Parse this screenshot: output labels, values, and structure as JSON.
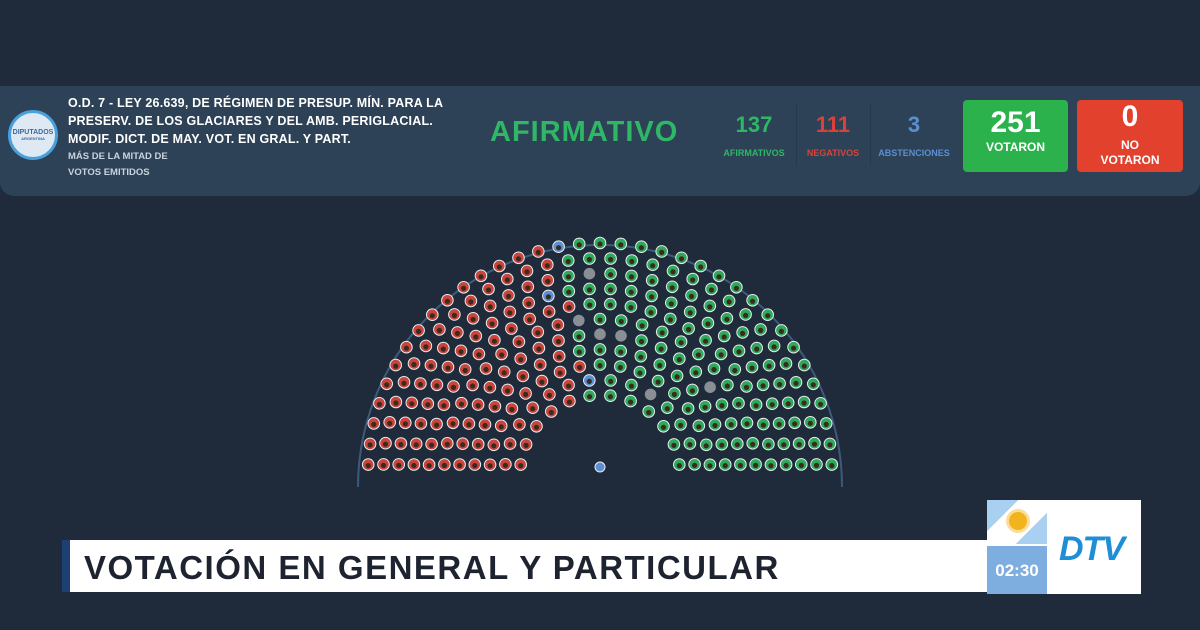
{
  "header": {
    "logo_text": "DIPUTADOS",
    "logo_subtext": "ARGENTINA",
    "title": "O.D. 7 - LEY 26.639, DE RÉGIMEN DE PRESUP. MÍN. PARA LA PRESERV. DE LOS GLACIARES Y DEL AMB. PERIGLACIAL. MODIF. DICT. DE MAY. VOT. EN GRAL. Y PART.",
    "majority_line1": "MÁS DE LA MITAD DE",
    "majority_line2": "VOTOS EMITIDOS",
    "result": "AFIRMATIVO",
    "afirmativos": {
      "value": "137",
      "label": "AFIRMATIVOS",
      "color": "#2fb765"
    },
    "negativos": {
      "value": "111",
      "label": "NEGATIVOS",
      "color": "#d9423a"
    },
    "abstenciones": {
      "value": "3",
      "label": "ABSTENCIONES",
      "color": "#5b8fd1"
    },
    "votaron": {
      "value": "251",
      "label": "VOTARON",
      "color": "#2bb24c"
    },
    "no_votaron": {
      "value": "0",
      "label": "NO VOTARON",
      "color": "#e2412e"
    }
  },
  "hemicycle": {
    "colors": {
      "afirmativo": "#2fa85a",
      "negativo": "#c9453b",
      "abstencion": "#5b8fd1",
      "ausente": "#8a8f96"
    }
  },
  "banner": {
    "text": "VOTACIÓN EN GENERAL Y PARTICULAR"
  },
  "brand": {
    "time": "02:30",
    "logo": "DTV"
  }
}
